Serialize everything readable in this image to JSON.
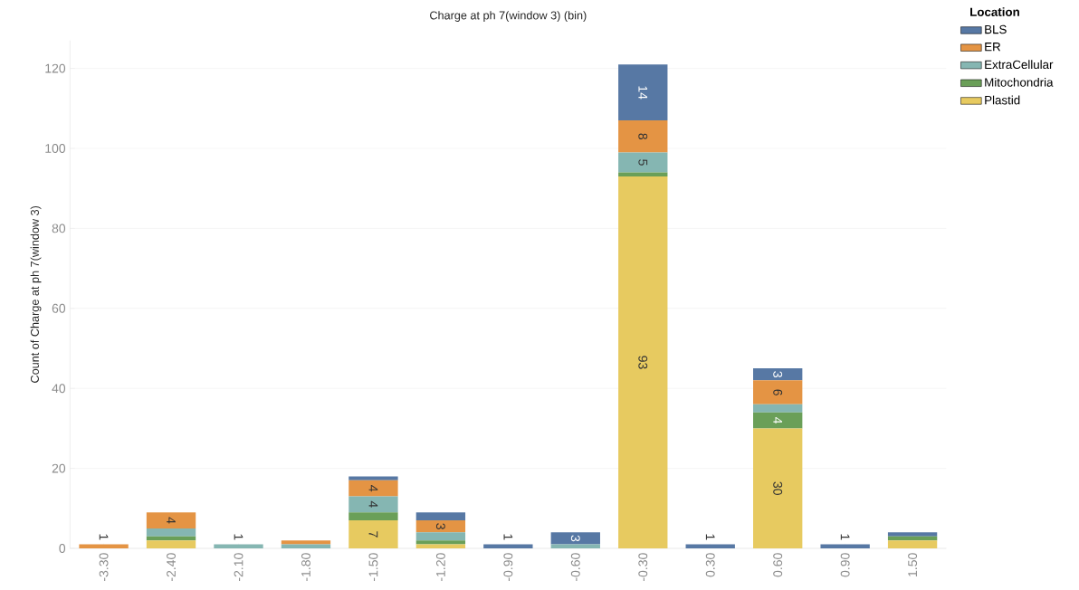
{
  "chart_data": {
    "type": "bar",
    "stacked": true,
    "title": "Charge at ph 7(window 3) (bin)",
    "ylabel": "Count of Charge at ph 7(window 3)",
    "legend_title": "Location",
    "legend": "top right",
    "grid": "y",
    "categories": [
      "-3.30",
      "-2.40",
      "-2.10",
      "-1.80",
      "-1.50",
      "-1.20",
      "-0.90",
      "-0.60",
      "-0.30",
      "0.30",
      "0.60",
      "0.90",
      "1.50"
    ],
    "ylim": [
      0,
      127
    ],
    "yticks": [
      0,
      20,
      40,
      60,
      80,
      100,
      120
    ],
    "series": [
      {
        "name": "Plastid",
        "color": "#e7ca60",
        "values": [
          0,
          2,
          0,
          0,
          7,
          1,
          0,
          0,
          93,
          0,
          30,
          0,
          2
        ],
        "value_labels": [
          null,
          null,
          null,
          null,
          "7",
          null,
          null,
          null,
          "93",
          null,
          "30",
          null,
          null
        ]
      },
      {
        "name": "Mitochondria",
        "color": "#6a9f58",
        "values": [
          0,
          1,
          0,
          0,
          2,
          1,
          0,
          0,
          1,
          0,
          4,
          0,
          1
        ],
        "value_labels": [
          null,
          null,
          null,
          null,
          null,
          null,
          null,
          null,
          null,
          null,
          "4",
          null,
          null
        ]
      },
      {
        "name": "ExtraCellular",
        "color": "#85b6b2",
        "values": [
          0,
          2,
          1,
          1,
          4,
          2,
          0,
          1,
          5,
          0,
          2,
          0,
          0
        ],
        "value_labels": [
          null,
          null,
          "1",
          null,
          "4",
          null,
          null,
          null,
          "5",
          null,
          null,
          null,
          null
        ]
      },
      {
        "name": "ER",
        "color": "#e49444",
        "values": [
          1,
          4,
          0,
          1,
          4,
          3,
          0,
          0,
          8,
          0,
          6,
          0,
          0
        ],
        "value_labels": [
          "1",
          "4",
          null,
          null,
          "4",
          "3",
          null,
          null,
          "8",
          null,
          "6",
          null,
          null
        ]
      },
      {
        "name": "BLS",
        "color": "#5778a4",
        "values": [
          0,
          0,
          0,
          0,
          1,
          2,
          1,
          3,
          14,
          1,
          3,
          1,
          1
        ],
        "value_labels": [
          null,
          null,
          null,
          null,
          null,
          null,
          "1",
          "3",
          "14",
          "1",
          "3",
          "1",
          null
        ]
      }
    ]
  }
}
